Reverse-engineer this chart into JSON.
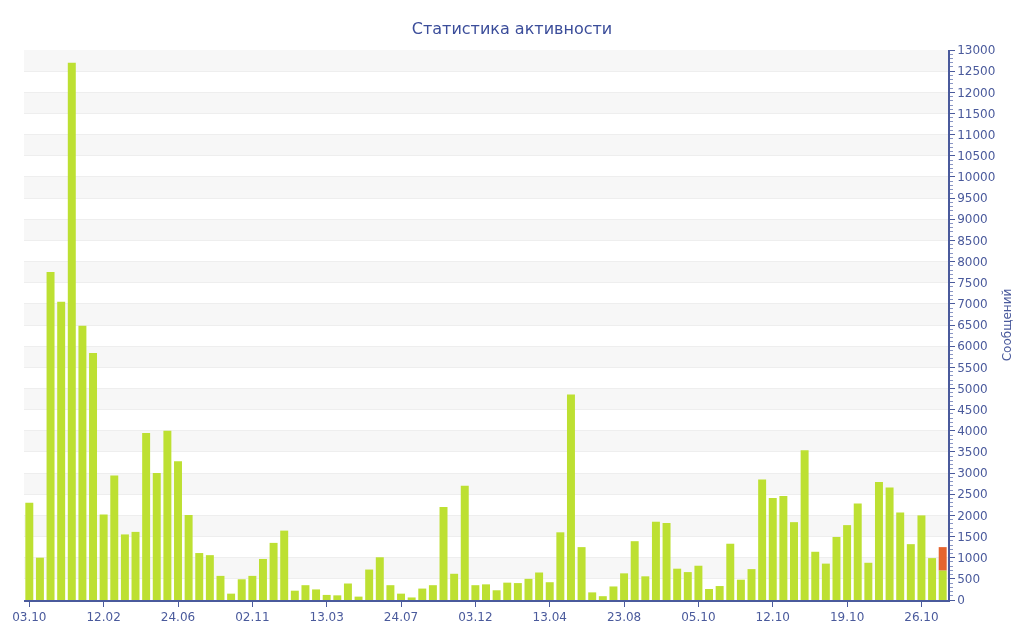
{
  "chart_data": {
    "type": "bar",
    "title": "Статистика активности",
    "ylabel": "Сообщений",
    "categories": [
      "03.10",
      null,
      null,
      null,
      null,
      null,
      null,
      "12.02",
      null,
      null,
      null,
      null,
      null,
      null,
      "24.06",
      null,
      null,
      null,
      null,
      null,
      null,
      "02.11",
      null,
      null,
      null,
      null,
      null,
      null,
      "13.03",
      null,
      null,
      null,
      null,
      null,
      null,
      "24.07",
      null,
      null,
      null,
      null,
      null,
      null,
      "03.12",
      null,
      null,
      null,
      null,
      null,
      null,
      "13.04",
      null,
      null,
      null,
      null,
      null,
      null,
      "23.08",
      null,
      null,
      null,
      null,
      null,
      null,
      "05.10",
      null,
      null,
      null,
      null,
      null,
      null,
      "12.10",
      null,
      null,
      null,
      null,
      null,
      null,
      "19.10",
      null,
      null,
      null,
      null,
      null,
      null,
      "26.10",
      null,
      null
    ],
    "stacked": true,
    "series": [
      {
        "color": "#bde032",
        "values": [
          2300,
          1000,
          7750,
          7050,
          12700,
          6480,
          5840,
          2020,
          2940,
          1550,
          1610,
          3950,
          3000,
          4000,
          3280,
          2010,
          1110,
          1060,
          570,
          150,
          490,
          570,
          970,
          1350,
          1640,
          220,
          350,
          250,
          120,
          110,
          390,
          80,
          720,
          1010,
          350,
          150,
          60,
          270,
          350,
          2200,
          620,
          2700,
          350,
          370,
          230,
          410,
          400,
          500,
          650,
          420,
          1600,
          4860,
          1250,
          180,
          90,
          320,
          630,
          1390,
          560,
          1850,
          1820,
          740,
          660,
          810,
          260,
          330,
          1330,
          480,
          730,
          2850,
          2410,
          2460,
          1840,
          3540,
          1140,
          860,
          1490,
          1770,
          2280,
          880,
          2790,
          2660,
          2070,
          1320,
          2000,
          990,
          700
        ]
      },
      {
        "color": "#e5642e",
        "values": [
          null,
          null,
          null,
          null,
          null,
          null,
          null,
          null,
          null,
          null,
          null,
          null,
          null,
          null,
          null,
          null,
          null,
          null,
          null,
          null,
          null,
          null,
          null,
          null,
          null,
          null,
          null,
          null,
          null,
          null,
          null,
          null,
          null,
          null,
          null,
          null,
          null,
          null,
          null,
          null,
          null,
          null,
          null,
          null,
          null,
          null,
          null,
          null,
          null,
          null,
          null,
          null,
          null,
          null,
          null,
          null,
          null,
          null,
          null,
          null,
          null,
          null,
          null,
          null,
          null,
          null,
          null,
          null,
          null,
          null,
          null,
          null,
          null,
          null,
          null,
          null,
          null,
          null,
          null,
          null,
          null,
          null,
          null,
          null,
          null,
          null,
          550
        ]
      }
    ],
    "ylim": [
      0,
      13000
    ],
    "yticks": [
      0,
      500,
      1000,
      1500,
      2000,
      2500,
      3000,
      3500,
      4000,
      4500,
      5000,
      5500,
      6000,
      6500,
      7000,
      7500,
      8000,
      8500,
      9000,
      9500,
      10000,
      10500,
      11000,
      11500,
      12000,
      12500,
      13000
    ],
    "grid": true
  }
}
